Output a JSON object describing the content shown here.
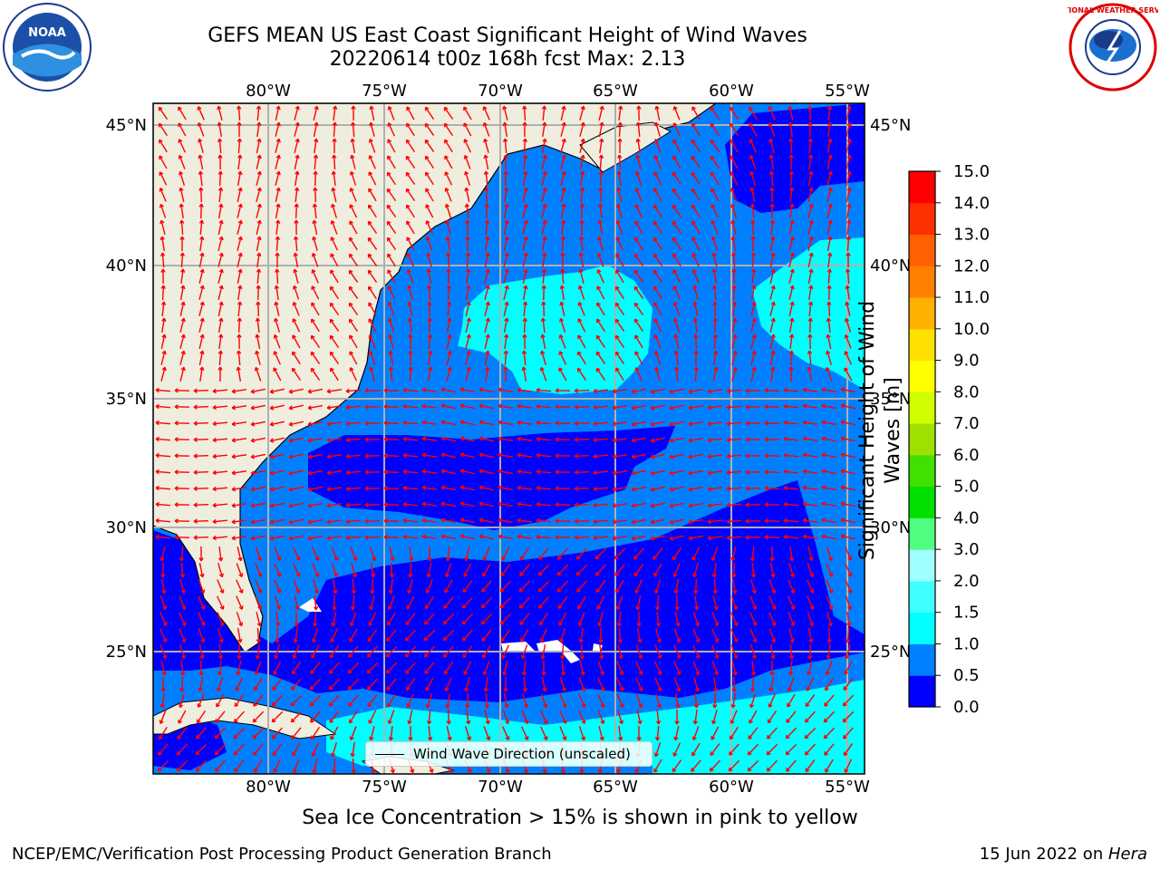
{
  "header": {
    "title_line1": "GEFS MEAN US East Coast Significant Height of Wind Waves",
    "title_line2": "20220614 t00z 168h fcst   Max: 2.13"
  },
  "logos": {
    "left": "noaa-logo",
    "right": "nws-logo",
    "left_text": "NOAA",
    "right_text": "NATIONAL WEATHER SERVICE"
  },
  "map": {
    "lon_labels": [
      "80°W",
      "75°W",
      "70°W",
      "65°W",
      "60°W",
      "55°W"
    ],
    "lat_labels": [
      "45°N",
      "40°N",
      "35°N",
      "30°N",
      "25°N"
    ],
    "legend_label": "Wind Wave Direction (unscaled)",
    "arrow_color": "#ff0000",
    "land_color": "#efedde"
  },
  "colorbar": {
    "title": "Significant Height of Wind Waves [m]",
    "ticks": [
      "0.0",
      "0.5",
      "1.0",
      "1.5",
      "2.0",
      "3.0",
      "4.0",
      "5.0",
      "6.0",
      "7.0",
      "8.0",
      "9.0",
      "10.0",
      "11.0",
      "12.0",
      "13.0",
      "14.0",
      "15.0"
    ],
    "colors": [
      "#0000ff",
      "#0080ff",
      "#00ffff",
      "#40ffff",
      "#a0ffff",
      "#50ff80",
      "#00e000",
      "#40e000",
      "#a0e000",
      "#d0ff00",
      "#ffff00",
      "#ffe000",
      "#ffb000",
      "#ff8000",
      "#ff6000",
      "#ff3000",
      "#ff0000"
    ]
  },
  "note": "Sea Ice Concentration > 15% is shown in pink to yellow",
  "footer": {
    "left": "NCEP/EMC/Verification Post Processing Product Generation Branch",
    "right_date": "15 Jun 2022 on ",
    "right_host": "Hera"
  }
}
